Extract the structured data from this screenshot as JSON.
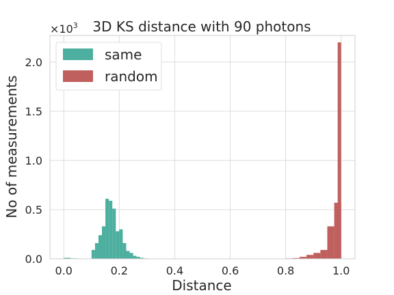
{
  "chart_data": {
    "type": "bar",
    "title": "3D KS distance with 90 photons",
    "xlabel": "Distance",
    "ylabel": "No of measurements",
    "y_multiplier": {
      "base": "×10",
      "exponent": "3"
    },
    "xlim": [
      -0.05,
      1.05
    ],
    "ylim": [
      0,
      2.27
    ],
    "x_ticks": [
      0.0,
      0.2,
      0.4,
      0.6,
      0.8,
      1.0
    ],
    "x_tick_labels": [
      "0.0",
      "0.2",
      "0.4",
      "0.6",
      "0.8",
      "1.0"
    ],
    "y_ticks": [
      0.0,
      0.5,
      1.0,
      1.5,
      2.0
    ],
    "y_tick_labels": [
      "0.0",
      "0.5",
      "1.0",
      "1.5",
      "2.0"
    ],
    "grid": true,
    "legend_position": "top-left",
    "bin_width": 0.025,
    "series": [
      {
        "name": "same",
        "color": "#4daf9f",
        "bins": [
          {
            "x0": 0.0,
            "value": 0.01
          },
          {
            "x0": 0.025,
            "value": 0.005
          },
          {
            "x0": 0.05,
            "value": 0.002
          },
          {
            "x0": 0.075,
            "value": 0.002
          },
          {
            "x0": 0.1,
            "value": 0.09
          },
          {
            "x0": 0.1125,
            "value": 0.16
          },
          {
            "x0": 0.125,
            "value": 0.24
          },
          {
            "x0": 0.1375,
            "value": 0.33
          },
          {
            "x0": 0.15,
            "value": 0.61
          },
          {
            "x0": 0.1625,
            "value": 0.59
          },
          {
            "x0": 0.175,
            "value": 0.51
          },
          {
            "x0": 0.1875,
            "value": 0.28
          },
          {
            "x0": 0.2,
            "value": 0.3
          },
          {
            "x0": 0.2125,
            "value": 0.16
          },
          {
            "x0": 0.225,
            "value": 0.08
          },
          {
            "x0": 0.2375,
            "value": 0.06
          },
          {
            "x0": 0.25,
            "value": 0.03
          },
          {
            "x0": 0.2625,
            "value": 0.02
          },
          {
            "x0": 0.275,
            "value": 0.01
          },
          {
            "x0": 0.2875,
            "value": 0.005
          }
        ]
      },
      {
        "name": "random",
        "color": "#c0605e",
        "bins": [
          {
            "x0": 0.775,
            "value": 0.003
          },
          {
            "x0": 0.8,
            "value": 0.005
          },
          {
            "x0": 0.825,
            "value": 0.008
          },
          {
            "x0": 0.85,
            "value": 0.02
          },
          {
            "x0": 0.875,
            "value": 0.04
          },
          {
            "x0": 0.9,
            "value": 0.06
          },
          {
            "x0": 0.925,
            "value": 0.09
          },
          {
            "x0": 0.95,
            "value": 0.33
          },
          {
            "x0": 0.975,
            "value": 0.57
          },
          {
            "x0": 1.0,
            "value": 2.2
          }
        ]
      }
    ]
  }
}
